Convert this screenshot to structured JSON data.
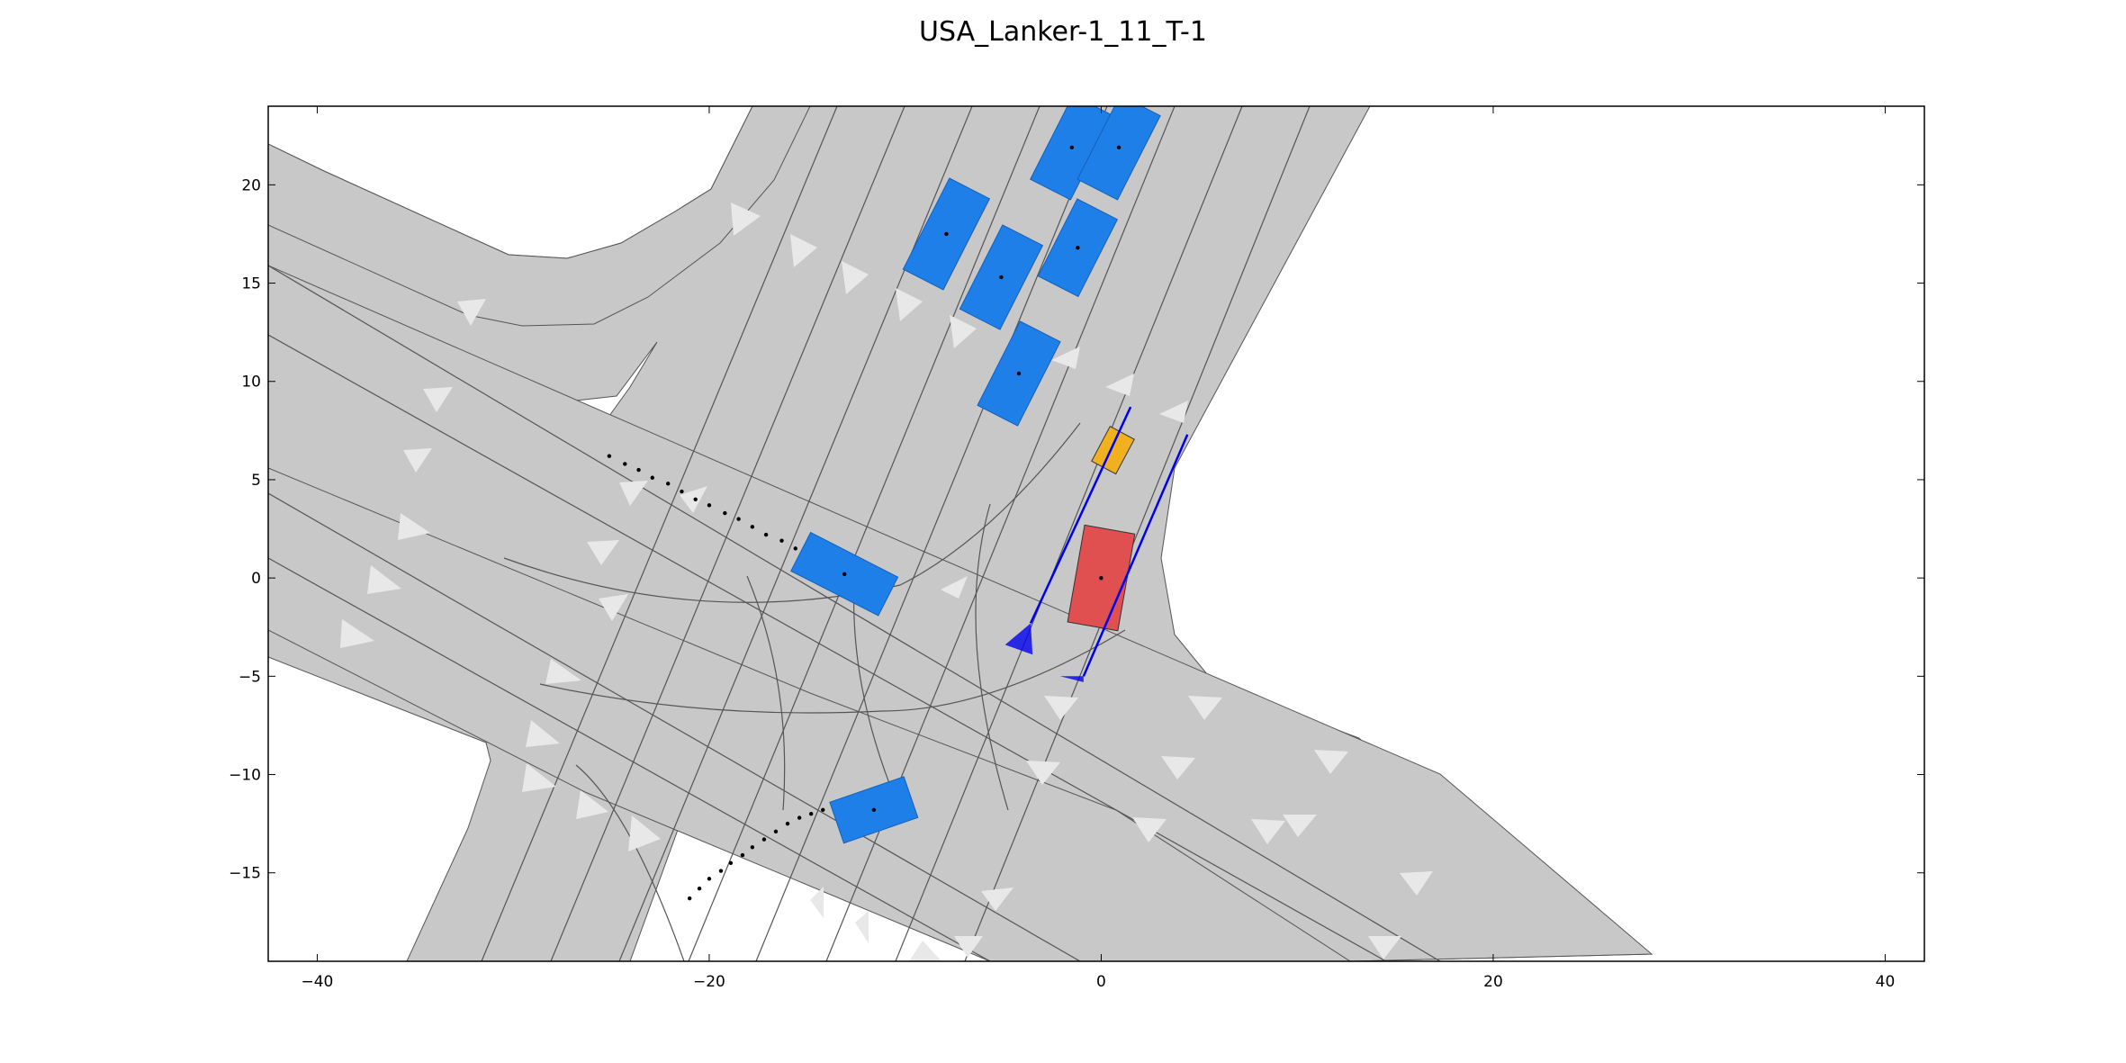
{
  "title": "USA_Lanker-1_11_T-1",
  "colors": {
    "road": "#c8c8c8",
    "lane_line": "#555555",
    "arrow": "#e6e6e6",
    "obstacle": "#1e7fe8",
    "ego": "#e05050",
    "pedestrian": "#f0b020",
    "sensor_line": "#0000ee"
  },
  "chart_data": {
    "type": "diagram",
    "xlim": [
      -42.5,
      42
    ],
    "ylim": [
      -19.5,
      24
    ],
    "x_ticks": [
      -40,
      -20,
      0,
      20,
      40
    ],
    "y_ticks": [
      20,
      15,
      10,
      5,
      0,
      -5,
      -10,
      -15
    ],
    "x_tick_labels": [
      "−40",
      "−20",
      "0",
      "20",
      "40"
    ],
    "y_tick_labels": [
      "20",
      "15",
      "10",
      "5",
      "0",
      "−5",
      "−10",
      "−15"
    ],
    "obstacles": [
      {
        "cx": -1.5,
        "cy": 21.9,
        "w": 2.3,
        "l": 4.8,
        "angle": 63
      },
      {
        "cx": 0.9,
        "cy": 21.9,
        "w": 2.3,
        "l": 4.8,
        "angle": 63
      },
      {
        "cx": -7.9,
        "cy": 17.5,
        "w": 2.3,
        "l": 5.2,
        "angle": 63
      },
      {
        "cx": -5.1,
        "cy": 15.3,
        "w": 2.3,
        "l": 4.8,
        "angle": 63
      },
      {
        "cx": -1.2,
        "cy": 16.8,
        "w": 2.3,
        "l": 4.4,
        "angle": 63
      },
      {
        "cx": -4.2,
        "cy": 10.4,
        "w": 2.3,
        "l": 4.8,
        "angle": 63
      },
      {
        "cx": -13.1,
        "cy": 0.2,
        "w": 2.2,
        "l": 5.0,
        "angle": -27
      },
      {
        "cx": -11.6,
        "cy": -11.8,
        "w": 2.2,
        "l": 4.0,
        "angle": 19
      }
    ],
    "ego": {
      "cx": 0.0,
      "cy": 0.0,
      "w": 2.6,
      "l": 5.0,
      "angle": 80
    },
    "pedestrian": {
      "cx": 0.6,
      "cy": 6.5,
      "w": 1.4,
      "l": 2.0,
      "angle": 62
    },
    "sensor_lines": [
      {
        "x1": -3.6,
        "y1": -2.3,
        "x2": 1.5,
        "y2": 8.7
      },
      {
        "x1": -0.9,
        "y1": -5.0,
        "x2": 4.4,
        "y2": 7.3
      }
    ],
    "sensor_cones": [
      {
        "tip": [
          -3.6,
          -2.3
        ],
        "b1": [
          -4.9,
          -3.4
        ],
        "b2": [
          -3.5,
          -3.9
        ]
      },
      {
        "tip": [
          -0.9,
          -5.0
        ],
        "b1": [
          -2.1,
          -5.0
        ],
        "b2": [
          -0.9,
          -5.3
        ]
      }
    ],
    "trajectories": [
      {
        "points": [
          [
            -25.1,
            6.2
          ],
          [
            -24.3,
            5.8
          ],
          [
            -23.6,
            5.5
          ],
          [
            -22.9,
            5.1
          ],
          [
            -22.1,
            4.8
          ],
          [
            -21.4,
            4.4
          ],
          [
            -20.7,
            4.0
          ],
          [
            -20.0,
            3.7
          ],
          [
            -19.2,
            3.3
          ],
          [
            -18.5,
            3.0
          ],
          [
            -17.8,
            2.6
          ],
          [
            -17.1,
            2.2
          ],
          [
            -16.3,
            1.9
          ],
          [
            -15.6,
            1.5
          ],
          [
            -15.0,
            1.1
          ],
          [
            -14.4,
            0.8
          ],
          [
            -13.8,
            0.5
          ]
        ]
      },
      {
        "points": [
          [
            -21.0,
            -16.3
          ],
          [
            -20.5,
            -15.8
          ],
          [
            -20.0,
            -15.3
          ],
          [
            -19.4,
            -14.9
          ],
          [
            -18.9,
            -14.5
          ],
          [
            -18.3,
            -14.1
          ],
          [
            -17.8,
            -13.7
          ],
          [
            -17.2,
            -13.3
          ],
          [
            -16.6,
            -12.9
          ],
          [
            -16.0,
            -12.5
          ],
          [
            -15.4,
            -12.2
          ],
          [
            -14.8,
            -12.0
          ],
          [
            -14.2,
            -11.8
          ],
          [
            -13.6,
            -11.6
          ],
          [
            -13.0,
            -11.5
          ],
          [
            -12.4,
            -11.4
          ],
          [
            -11.9,
            -11.8
          ]
        ]
      }
    ]
  }
}
